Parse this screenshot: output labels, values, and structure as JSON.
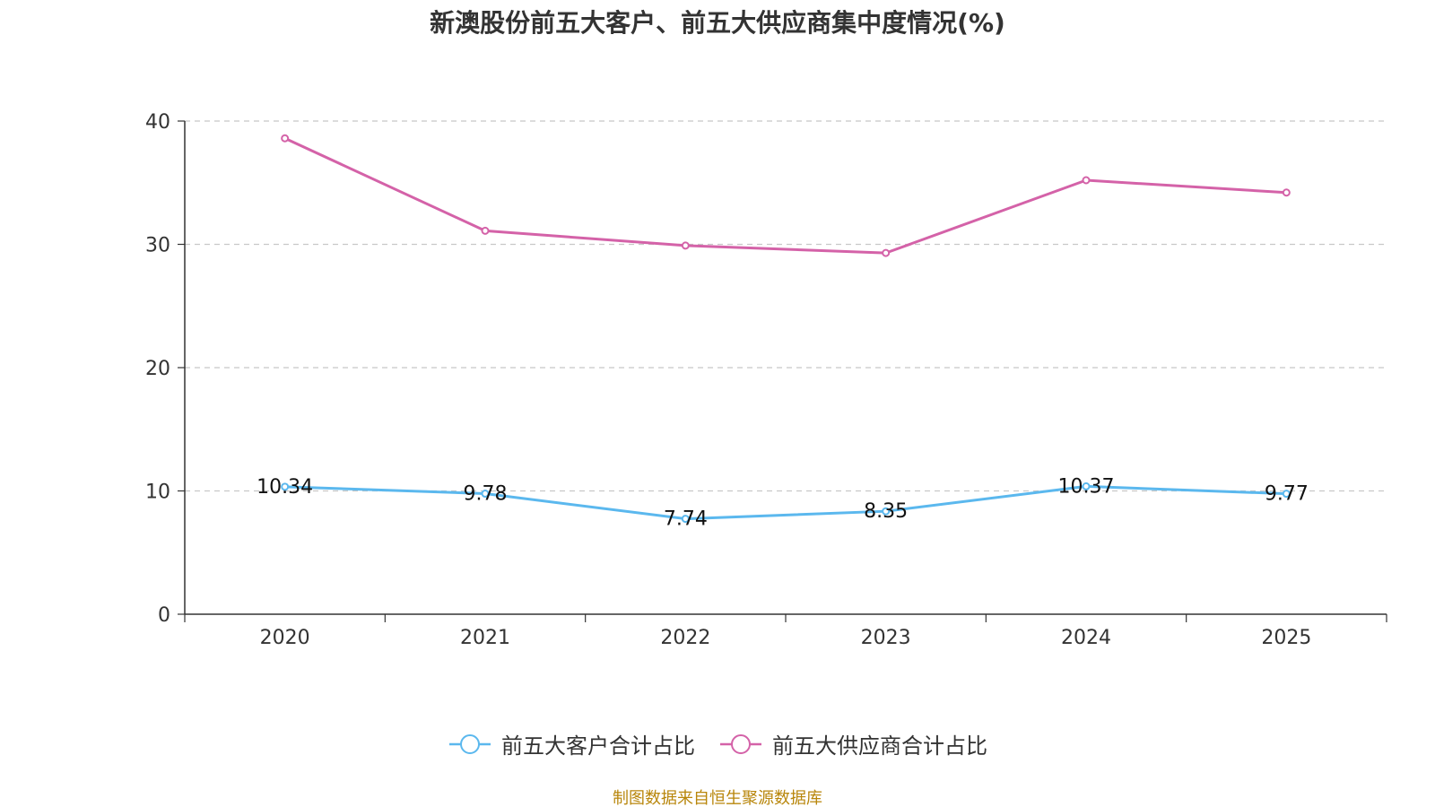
{
  "chart_data": {
    "type": "line",
    "title": "新澳股份前五大客户、前五大供应商集中度情况(%)",
    "categories": [
      "2020",
      "2021",
      "2022",
      "2023",
      "2024",
      "2025"
    ],
    "series": [
      {
        "name": "前五大客户合计占比",
        "color": "#5bb8ee",
        "values": [
          10.34,
          9.78,
          7.74,
          8.35,
          10.37,
          9.77
        ],
        "labels": [
          "10.34",
          "9.78",
          "7.74",
          "8.35",
          "10.37",
          "9.77"
        ],
        "show_labels": true
      },
      {
        "name": "前五大供应商合计占比",
        "color": "#d462a8",
        "values": [
          38.6,
          31.1,
          29.9,
          29.3,
          35.2,
          34.2
        ],
        "show_labels": false
      }
    ],
    "ylim": [
      0,
      40
    ],
    "yticks": [
      "0",
      "10",
      "20",
      "30",
      "40"
    ],
    "ytick_values": [
      0,
      10,
      20,
      30,
      40
    ],
    "grid": true,
    "legend_position": "bottom",
    "xlabel": "",
    "ylabel": ""
  },
  "footer": {
    "source": "制图数据来自恒生聚源数据库"
  }
}
